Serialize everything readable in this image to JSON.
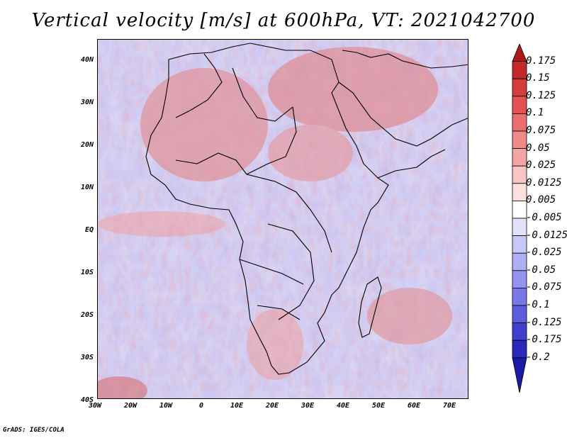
{
  "title": "Vertical velocity [m/s] at 600hPa, VT: 2021042700",
  "credit": "GrADS: IGES/COLA",
  "map": {
    "lon_range": [
      -30,
      75
    ],
    "lat_range": [
      -40,
      45
    ],
    "x_ticks": [
      "30W",
      "20W",
      "10W",
      "0",
      "10E",
      "20E",
      "30E",
      "40E",
      "50E",
      "60E",
      "70E"
    ],
    "y_ticks": [
      "40N",
      "30N",
      "20N",
      "10N",
      "EQ",
      "10S",
      "20S",
      "30S",
      "40S"
    ],
    "field": "vertical velocity",
    "level": "600hPa"
  },
  "colorbar": {
    "labels": [
      "0.175",
      "0.15",
      "0.125",
      "0.1",
      "0.075",
      "0.05",
      "0.025",
      "0.0125",
      "0.005",
      "-0.005",
      "-0.0125",
      "-0.025",
      "-0.05",
      "-0.075",
      "-0.1",
      "-0.125",
      "-0.175",
      "-0.2"
    ],
    "colors": [
      "#b01818",
      "#c42a2a",
      "#d63c3c",
      "#e25252",
      "#ea6e6e",
      "#f08a8a",
      "#f4a6a6",
      "#f8c4c4",
      "#fce0e0",
      "#ffffff",
      "#e2e2fc",
      "#c8c8f8",
      "#aeaef4",
      "#9494ee",
      "#7878e6",
      "#5c5cdc",
      "#4040cc",
      "#2a2aba",
      "#1a1aa6"
    ]
  }
}
